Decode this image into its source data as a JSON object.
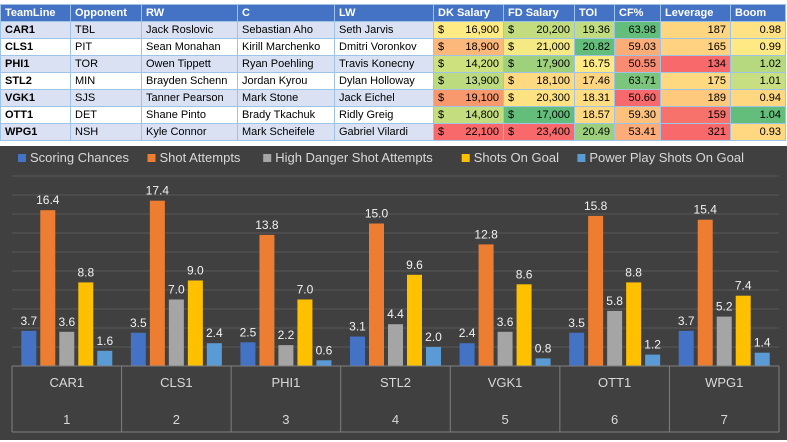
{
  "table": {
    "headers": [
      "TeamLine",
      "Opponent",
      "RW",
      "C",
      "LW",
      "DK Salary",
      "FD Salary",
      "TOI",
      "CF%",
      "Leverage",
      "Boom"
    ],
    "currency_symbol": "$",
    "colors": {
      "dk": [
        "#ffeb84",
        "#fcb77a",
        "#cde17f",
        "#bbdb7e",
        "#f8986d",
        "#c4dd7e",
        "#f8696b"
      ],
      "fd": [
        "#c2dc7e",
        "#f5e983",
        "#9fd07c",
        "#ffda80",
        "#ffe383",
        "#63be7b",
        "#f8696b"
      ],
      "toi": [
        "#c0dc7f",
        "#63be7b",
        "#ffea84",
        "#ffd580",
        "#ffdd82",
        "#ffd981",
        "#9dd07c"
      ],
      "cf": [
        "#63be7b",
        "#fbad78",
        "#f98b72",
        "#7cc57d",
        "#f8696b",
        "#fdc17c",
        "#fbac78"
      ],
      "lev": [
        "#fed680",
        "#fed280",
        "#f8696b",
        "#fed980",
        "#fec87d",
        "#f8726c",
        "#f8696b"
      ],
      "boom": [
        "#ffe283",
        "#ffe984",
        "#b6d97f",
        "#c8df81",
        "#ffd781",
        "#63be7b",
        "#ffd881"
      ]
    },
    "rows": [
      {
        "teamline": "CAR1",
        "opponent": "TBL",
        "rw": "Jack Roslovic",
        "c": "Sebastian Aho",
        "lw": "Seth Jarvis",
        "dk": "16,900",
        "fd": "20,200",
        "toi": "19.36",
        "cf": "63.98",
        "leverage": "187",
        "boom": "0.98"
      },
      {
        "teamline": "CLS1",
        "opponent": "PIT",
        "rw": "Sean Monahan",
        "c": "Kirill Marchenko",
        "lw": "Dmitri Voronkov",
        "dk": "18,900",
        "fd": "21,000",
        "toi": "20.82",
        "cf": "59.03",
        "leverage": "165",
        "boom": "0.99"
      },
      {
        "teamline": "PHI1",
        "opponent": "TOR",
        "rw": "Owen Tippett",
        "c": "Ryan Poehling",
        "lw": "Travis Konecny",
        "dk": "14,200",
        "fd": "17,900",
        "toi": "16.75",
        "cf": "50.55",
        "leverage": "134",
        "boom": "1.02"
      },
      {
        "teamline": "STL2",
        "opponent": "MIN",
        "rw": "Brayden Schenn",
        "c": "Jordan Kyrou",
        "lw": "Dylan Holloway",
        "dk": "13,900",
        "fd": "18,100",
        "toi": "17.46",
        "cf": "63.71",
        "leverage": "175",
        "boom": "1.01"
      },
      {
        "teamline": "VGK1",
        "opponent": "SJS",
        "rw": "Tanner Pearson",
        "c": "Mark Stone",
        "lw": "Jack Eichel",
        "dk": "19,100",
        "fd": "20,300",
        "toi": "18.31",
        "cf": "50.60",
        "leverage": "189",
        "boom": "0.94"
      },
      {
        "teamline": "OTT1",
        "opponent": "DET",
        "rw": "Shane Pinto",
        "c": "Brady Tkachuk",
        "lw": "Ridly Greig",
        "dk": "14,800",
        "fd": "17,000",
        "toi": "18.57",
        "cf": "59.30",
        "leverage": "159",
        "boom": "1.04"
      },
      {
        "teamline": "WPG1",
        "opponent": "NSH",
        "rw": "Kyle Connor",
        "c": "Mark Scheifele",
        "lw": "Gabriel Vilardi",
        "dk": "22,100",
        "fd": "23,400",
        "toi": "20.49",
        "cf": "53.41",
        "leverage": "321",
        "boom": "0.93"
      }
    ]
  },
  "chart_data": {
    "type": "bar",
    "title": "",
    "xlabel": "",
    "ylabel": "",
    "ylim": [
      0,
      20
    ],
    "grid": true,
    "legend_position": "top",
    "categories": [
      "CAR1",
      "CLS1",
      "PHI1",
      "STL2",
      "VGK1",
      "OTT1",
      "WPG1"
    ],
    "category_index": [
      "1",
      "2",
      "3",
      "4",
      "5",
      "6",
      "7"
    ],
    "series": [
      {
        "name": "Scoring Chances",
        "color": "#4472c4",
        "values": [
          3.7,
          3.5,
          2.5,
          3.1,
          2.4,
          3.5,
          3.7
        ]
      },
      {
        "name": "Shot Attempts",
        "color": "#ed7d31",
        "values": [
          16.4,
          17.4,
          13.8,
          15.0,
          12.8,
          15.8,
          15.4
        ]
      },
      {
        "name": "High Danger Shot Attempts",
        "color": "#a5a5a5",
        "values": [
          3.6,
          7.0,
          2.2,
          4.4,
          3.6,
          5.8,
          5.2
        ]
      },
      {
        "name": "Shots On Goal",
        "color": "#ffc000",
        "values": [
          8.8,
          9.0,
          7.0,
          9.6,
          8.6,
          8.8,
          7.4
        ]
      },
      {
        "name": "Power Play Shots On Goal",
        "color": "#5b9bd5",
        "values": [
          1.6,
          2.4,
          0.6,
          2.0,
          0.8,
          1.2,
          1.4
        ]
      }
    ],
    "background": "#404040",
    "text_color": "#d9d9d9"
  }
}
